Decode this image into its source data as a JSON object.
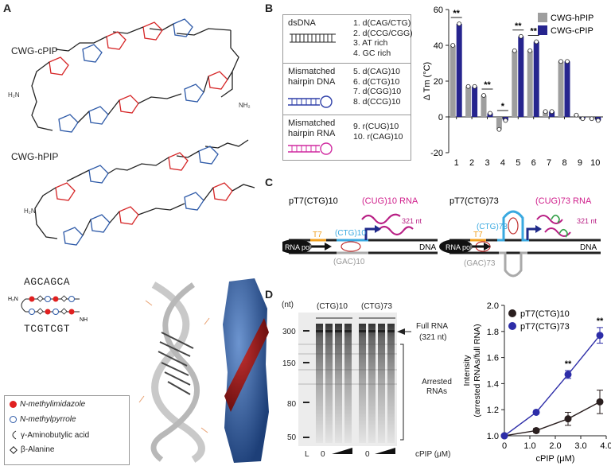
{
  "panels": {
    "a": "A",
    "b": "B",
    "c": "C",
    "d": "D"
  },
  "panelA": {
    "cpip_label": "CWG-cPIP",
    "hpip_label": "CWG-hPIP",
    "seq_top": "AGCAGCA",
    "seq_bottom": "TCGTCGT",
    "legend": [
      {
        "icon": "red-filled-circle",
        "text": "N-methylimidazole"
      },
      {
        "icon": "blue-open-circle",
        "text": "N-methylpyrrole"
      },
      {
        "icon": "turn-symbol",
        "text": "γ-Aminobutylic acid"
      },
      {
        "icon": "diamond",
        "text": "β-Alanine"
      }
    ]
  },
  "panelB": {
    "table": [
      {
        "group": "dsDNA",
        "items": [
          "1. d(CAG/CTG)",
          "2. d(CCG/CGG)",
          "3. AT rich",
          "4. GC rich"
        ]
      },
      {
        "group": "Mismatched hairpin DNA",
        "items": [
          "5. d(CAG)10",
          "6. d(CTG)10",
          "7. d(CGG)10",
          "8. d(CCG)10"
        ]
      },
      {
        "group": "Mismatched hairpin RNA",
        "items": [
          "9. r(CUG)10",
          "10. r(CAG)10"
        ]
      }
    ],
    "colors": {
      "hpip": "#9e9e9e",
      "cpip": "#26248e"
    }
  },
  "chart_data": [
    {
      "type": "bar",
      "ylabel": "Δ Tm (°C)",
      "ylim": [
        -20,
        60
      ],
      "yticks": [
        -20,
        0,
        20,
        40,
        60
      ],
      "categories": [
        "1",
        "2",
        "3",
        "4",
        "5",
        "6",
        "7",
        "8",
        "9",
        "10"
      ],
      "series": [
        {
          "name": "CWG-hPIP",
          "values": [
            40,
            17,
            12,
            -7,
            37,
            37,
            3,
            31,
            1,
            -1
          ]
        },
        {
          "name": "CWG-cPIP",
          "values": [
            52,
            17,
            2,
            -2,
            45,
            42,
            3,
            31,
            -1,
            -2
          ]
        }
      ],
      "significance": [
        {
          "category": "1",
          "mark": "**"
        },
        {
          "category": "3",
          "mark": "**"
        },
        {
          "category": "4",
          "mark": "*"
        },
        {
          "category": "5",
          "mark": "**"
        },
        {
          "category": "6",
          "mark": "**"
        }
      ],
      "legend_position": "top-right"
    },
    {
      "type": "line",
      "xlabel": "cPIP (μM)",
      "ylabel": "Intensity (arrested RNAs/full RNA)",
      "xlim": [
        0,
        4.0
      ],
      "ylim": [
        1.0,
        2.0
      ],
      "xticks": [
        "0",
        "1.0",
        "2.0",
        "3.0",
        "4.0"
      ],
      "yticks": [
        "1.0",
        "1.2",
        "1.4",
        "1.6",
        "1.8",
        "2.0"
      ],
      "series": [
        {
          "name": "pT7(CTG)10",
          "x": [
            0,
            1.25,
            2.5,
            3.75
          ],
          "y": [
            1.0,
            1.04,
            1.13,
            1.26
          ],
          "err": [
            0,
            0.015,
            0.05,
            0.09
          ]
        },
        {
          "name": "pT7(CTG)73",
          "x": [
            0,
            1.25,
            2.5,
            3.75
          ],
          "y": [
            1.0,
            1.18,
            1.47,
            1.77
          ],
          "err": [
            0,
            0.01,
            0.03,
            0.06
          ]
        }
      ],
      "significance": [
        {
          "x": 2.5,
          "mark": "**"
        },
        {
          "x": 3.75,
          "mark": "**"
        }
      ],
      "legend_position": "top-left"
    }
  ],
  "panelC": {
    "left_title": "pT7(CTG)10",
    "right_title": "pT7(CTG)73",
    "left_rna": "(CUG)10 RNA",
    "right_rna": "(CUG)73 RNA",
    "nt": "321 nt",
    "t7": "T7",
    "rnapol": "RNA pol",
    "ctg10": "(CTG)10",
    "ctg73": "(CTG)73",
    "gac10": "(GAC)10",
    "gac73": "(GAC)73",
    "dna": "DNA"
  },
  "panelD": {
    "nt_label": "(nt)",
    "markers": [
      "300",
      "150",
      "80",
      "50"
    ],
    "lane_group1": "(CTG)10",
    "lane_group2": "(CTG)73",
    "full_rna": "Full RNA",
    "full_rna_len": "(321 nt)",
    "arrested": "Arrested RNAs",
    "ladder": "L",
    "zero1": "0",
    "zero2": "0",
    "cpip": "cPIP (μM)"
  }
}
